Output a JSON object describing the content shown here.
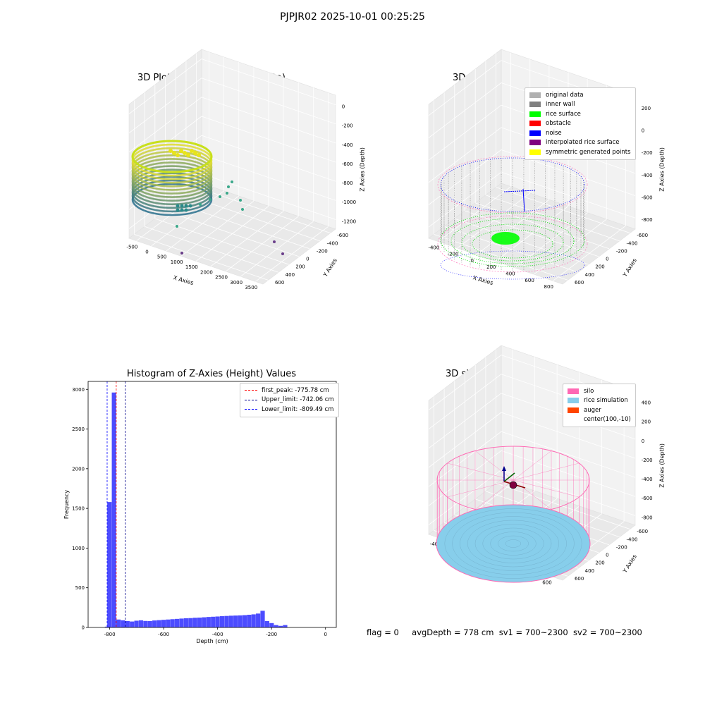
{
  "suptitle": "PJPJR02 2025-10-01 00:25:25",
  "panels": {
    "p1": {
      "title": "3D Plot of Silo Interior(row data)",
      "xlabel": "X Axies",
      "ylabel": "Y Axies",
      "zlabel": "Z Axies (Depth)",
      "x_ticks": [
        "-500",
        "0",
        "500",
        "1000",
        "1500",
        "2000",
        "2500",
        "3000",
        "3500"
      ],
      "y_ticks": [
        "600",
        "400",
        "200",
        "0",
        "-200",
        "-400",
        "-600"
      ],
      "z_ticks": [
        "0",
        "-200",
        "-400",
        "-600",
        "-800",
        "-1000",
        "-1200"
      ]
    },
    "p2": {
      "title": "3D classify of Silo Interior",
      "xlabel": "X Axies",
      "ylabel": "Y Axies",
      "zlabel": "Z Axies (Depth)",
      "x_ticks": [
        "-400",
        "-200",
        "0",
        "200",
        "400",
        "600",
        "800"
      ],
      "y_ticks": [
        "600",
        "400",
        "200",
        "0",
        "-200",
        "-400",
        "-600"
      ],
      "z_ticks": [
        "200",
        "0",
        "-200",
        "-400",
        "-600",
        "-800"
      ],
      "legend": [
        {
          "label": "original data",
          "color": "#b0b0b0"
        },
        {
          "label": "inner wall",
          "color": "#808080"
        },
        {
          "label": "rice surface",
          "color": "#00ff00"
        },
        {
          "label": "obstacle",
          "color": "#ff0000"
        },
        {
          "label": "noise",
          "color": "#0000ff"
        },
        {
          "label": "interpolated rice surface",
          "color": "#800080"
        },
        {
          "label": "symmetric generated points",
          "color": "#ffff00"
        }
      ]
    },
    "p4": {
      "title": "3D simulation of Silo Interior",
      "xlabel": "X Axies",
      "ylabel": "Y Axies",
      "zlabel": "Z Axies (Depth)",
      "x_ticks": [
        "-400",
        "-200",
        "0",
        "200",
        "400",
        "600"
      ],
      "y_ticks": [
        "600",
        "400",
        "200",
        "0",
        "-200",
        "-400",
        "-600"
      ],
      "z_ticks": [
        "400",
        "200",
        "0",
        "-200",
        "-400",
        "-600",
        "-800"
      ],
      "legend": [
        {
          "label": "silo",
          "color": "#ff69b4"
        },
        {
          "label": "rice simulation",
          "color": "#87ceeb"
        },
        {
          "label": "auger",
          "color": "#ff4500"
        },
        {
          "label": "center(100,-10)",
          "color": "#ffffff"
        }
      ]
    }
  },
  "chart_data": {
    "type": "bar",
    "title": "Histogram of Z-Axies (Height) Values",
    "xlabel": "Depth (cm)",
    "ylabel": "Frequency",
    "xlim": [
      -880,
      40
    ],
    "ylim": [
      0,
      3100
    ],
    "x_ticks": [
      -800,
      -600,
      -400,
      -200,
      0
    ],
    "y_ticks": [
      0,
      500,
      1000,
      1500,
      2000,
      2500,
      3000
    ],
    "bar_color": "#0000ff",
    "bin_start": -809,
    "bin_width": 16.7,
    "values": [
      1580,
      2960,
      100,
      90,
      80,
      75,
      85,
      90,
      82,
      80,
      88,
      92,
      96,
      100,
      104,
      108,
      112,
      116,
      118,
      122,
      124,
      128,
      132,
      135,
      138,
      142,
      145,
      148,
      150,
      152,
      155,
      160,
      165,
      175,
      210,
      80,
      55,
      30,
      20,
      30
    ],
    "pre_bar": {
      "x": -818,
      "value": 10
    },
    "vlines": [
      {
        "label": "first_peak: -775.78 cm",
        "x": -775.78,
        "color": "#ff0000"
      },
      {
        "label": "Upper_limit: -742.06 cm",
        "x": -742.06,
        "color": "#00008b"
      },
      {
        "label": "Lower_limit: -809.49 cm",
        "x": -809.49,
        "color": "#0000ff"
      }
    ]
  },
  "footer": {
    "flag": "flag = 0",
    "avgDepth": "avgDepth = 778 cm",
    "sv1": "sv1 = 700~2300",
    "sv2": "sv2 = 700~2300"
  }
}
